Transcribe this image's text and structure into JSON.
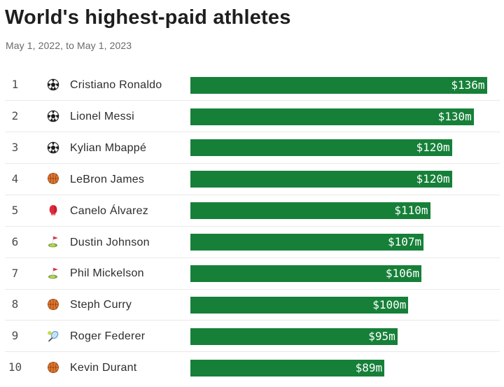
{
  "header": {
    "title": "World's highest-paid athletes",
    "subtitle": "May 1, 2022, to May 1, 2023"
  },
  "chart_data": {
    "type": "bar",
    "orientation": "horizontal",
    "title": "World's highest-paid athletes",
    "subtitle": "May 1, 2022, to May 1, 2023",
    "xlim": [
      0,
      136
    ],
    "grid": false,
    "legend": false,
    "bar_color": "#168039",
    "value_label_color": "#ffffff",
    "categories": [
      "Cristiano Ronaldo",
      "Lionel Messi",
      "Kylian Mbappé",
      "LeBron James",
      "Canelo Álvarez",
      "Dustin Johnson",
      "Phil Mickelson",
      "Steph Curry",
      "Roger Federer",
      "Kevin Durant"
    ],
    "values": [
      136,
      130,
      120,
      120,
      110,
      107,
      106,
      100,
      95,
      89
    ],
    "rows": [
      {
        "rank": "1",
        "icon": "soccer-ball",
        "icon_ref": "#sym-soccer-ball",
        "name": "Cristiano Ronaldo",
        "value": 136,
        "label": "$136m"
      },
      {
        "rank": "2",
        "icon": "soccer-ball",
        "icon_ref": "#sym-soccer-ball",
        "name": "Lionel Messi",
        "value": 130,
        "label": "$130m"
      },
      {
        "rank": "3",
        "icon": "soccer-ball",
        "icon_ref": "#sym-soccer-ball",
        "name": "Kylian Mbappé",
        "value": 120,
        "label": "$120m"
      },
      {
        "rank": "4",
        "icon": "basketball",
        "icon_ref": "#sym-basketball",
        "name": "LeBron James",
        "value": 120,
        "label": "$120m"
      },
      {
        "rank": "5",
        "icon": "boxing-glove",
        "icon_ref": "#sym-boxing-glove",
        "name": "Canelo Álvarez",
        "value": 110,
        "label": "$110m"
      },
      {
        "rank": "6",
        "icon": "golf-flag",
        "icon_ref": "#sym-golf-flag",
        "name": "Dustin Johnson",
        "value": 107,
        "label": "$107m"
      },
      {
        "rank": "7",
        "icon": "golf-flag",
        "icon_ref": "#sym-golf-flag",
        "name": "Phil Mickelson",
        "value": 106,
        "label": "$106m"
      },
      {
        "rank": "8",
        "icon": "basketball",
        "icon_ref": "#sym-basketball",
        "name": "Steph Curry",
        "value": 100,
        "label": "$100m"
      },
      {
        "rank": "9",
        "icon": "tennis",
        "icon_ref": "#sym-tennis",
        "name": "Roger Federer",
        "value": 95,
        "label": "$95m"
      },
      {
        "rank": "10",
        "icon": "basketball",
        "icon_ref": "#sym-basketball",
        "name": "Kevin Durant",
        "value": 89,
        "label": "$89m"
      }
    ]
  }
}
